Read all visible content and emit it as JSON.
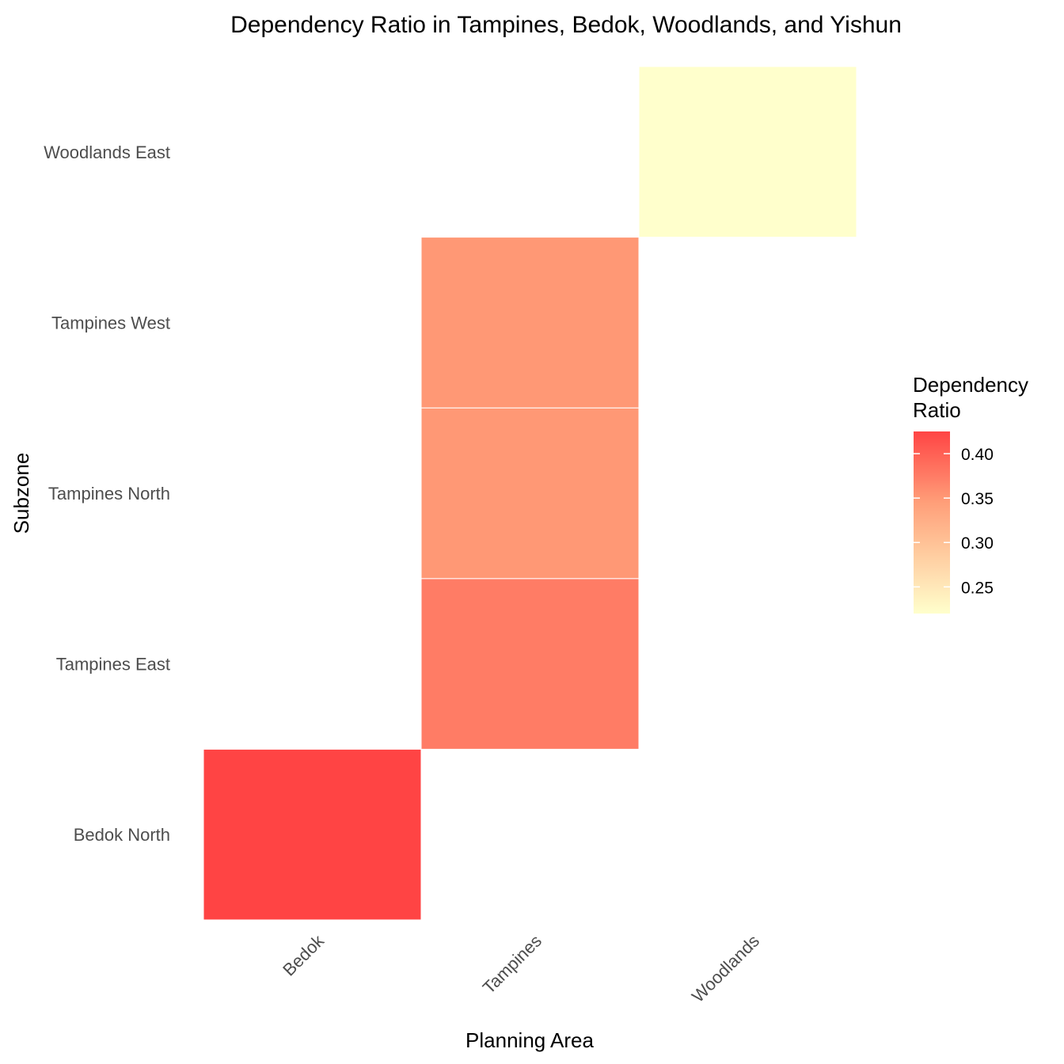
{
  "chart_data": {
    "type": "heatmap",
    "title": "Dependency Ratio in Tampines, Bedok, Woodlands, and Yishun",
    "xlabel": "Planning Area",
    "ylabel": "Subzone",
    "x_categories": [
      "Bedok",
      "Tampines",
      "Woodlands"
    ],
    "y_categories": [
      "Bedok North",
      "Tampines East",
      "Tampines North",
      "Tampines West",
      "Woodlands East"
    ],
    "cells": [
      {
        "x": "Bedok",
        "y": "Bedok North",
        "value": 0.425
      },
      {
        "x": "Tampines",
        "y": "Tampines East",
        "value": 0.375
      },
      {
        "x": "Tampines",
        "y": "Tampines North",
        "value": 0.35
      },
      {
        "x": "Tampines",
        "y": "Tampines West",
        "value": 0.35
      },
      {
        "x": "Woodlands",
        "y": "Woodlands East",
        "value": 0.22
      }
    ],
    "legend": {
      "title_lines": [
        "Dependency",
        "Ratio"
      ],
      "ticks": [
        0.25,
        0.3,
        0.35,
        0.4
      ],
      "tick_labels": [
        "0.25",
        "0.30",
        "0.35",
        "0.40"
      ],
      "range": [
        0.22,
        0.425
      ],
      "placement": "right"
    },
    "colors": {
      "low": "#ffffcc",
      "mid": "#ffa07a",
      "high": "#ff4444"
    },
    "grid": false
  }
}
